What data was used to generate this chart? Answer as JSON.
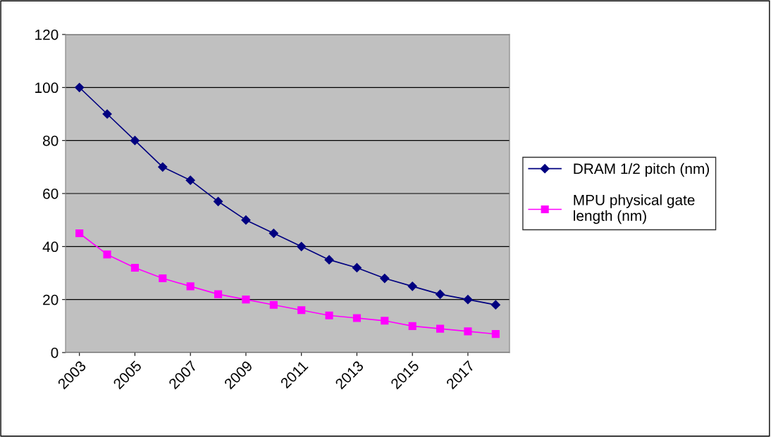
{
  "chart_data": {
    "type": "line",
    "categories": [
      "2003",
      null,
      "2005",
      null,
      "2007",
      null,
      "2009",
      null,
      "2011",
      null,
      "2013",
      null,
      "2015",
      null,
      "2017",
      null
    ],
    "series": [
      {
        "name": "DRAM 1/2 pitch (nm)",
        "color": "#000080",
        "marker": "diamond",
        "values": [
          100,
          90,
          80,
          70,
          65,
          57,
          50,
          45,
          40,
          35,
          32,
          28,
          25,
          22,
          20,
          18
        ]
      },
      {
        "name": "MPU physical gate\nlength (nm)",
        "color": "#ff00ff",
        "marker": "square",
        "values": [
          45,
          37,
          32,
          28,
          25,
          22,
          20,
          18,
          16,
          14,
          13,
          12,
          10,
          9,
          8,
          7
        ]
      }
    ],
    "ylim": [
      0,
      120
    ],
    "yticks": [
      0,
      20,
      40,
      60,
      80,
      100,
      120
    ],
    "grid": "y",
    "legend": "right",
    "line_style": "solid"
  }
}
